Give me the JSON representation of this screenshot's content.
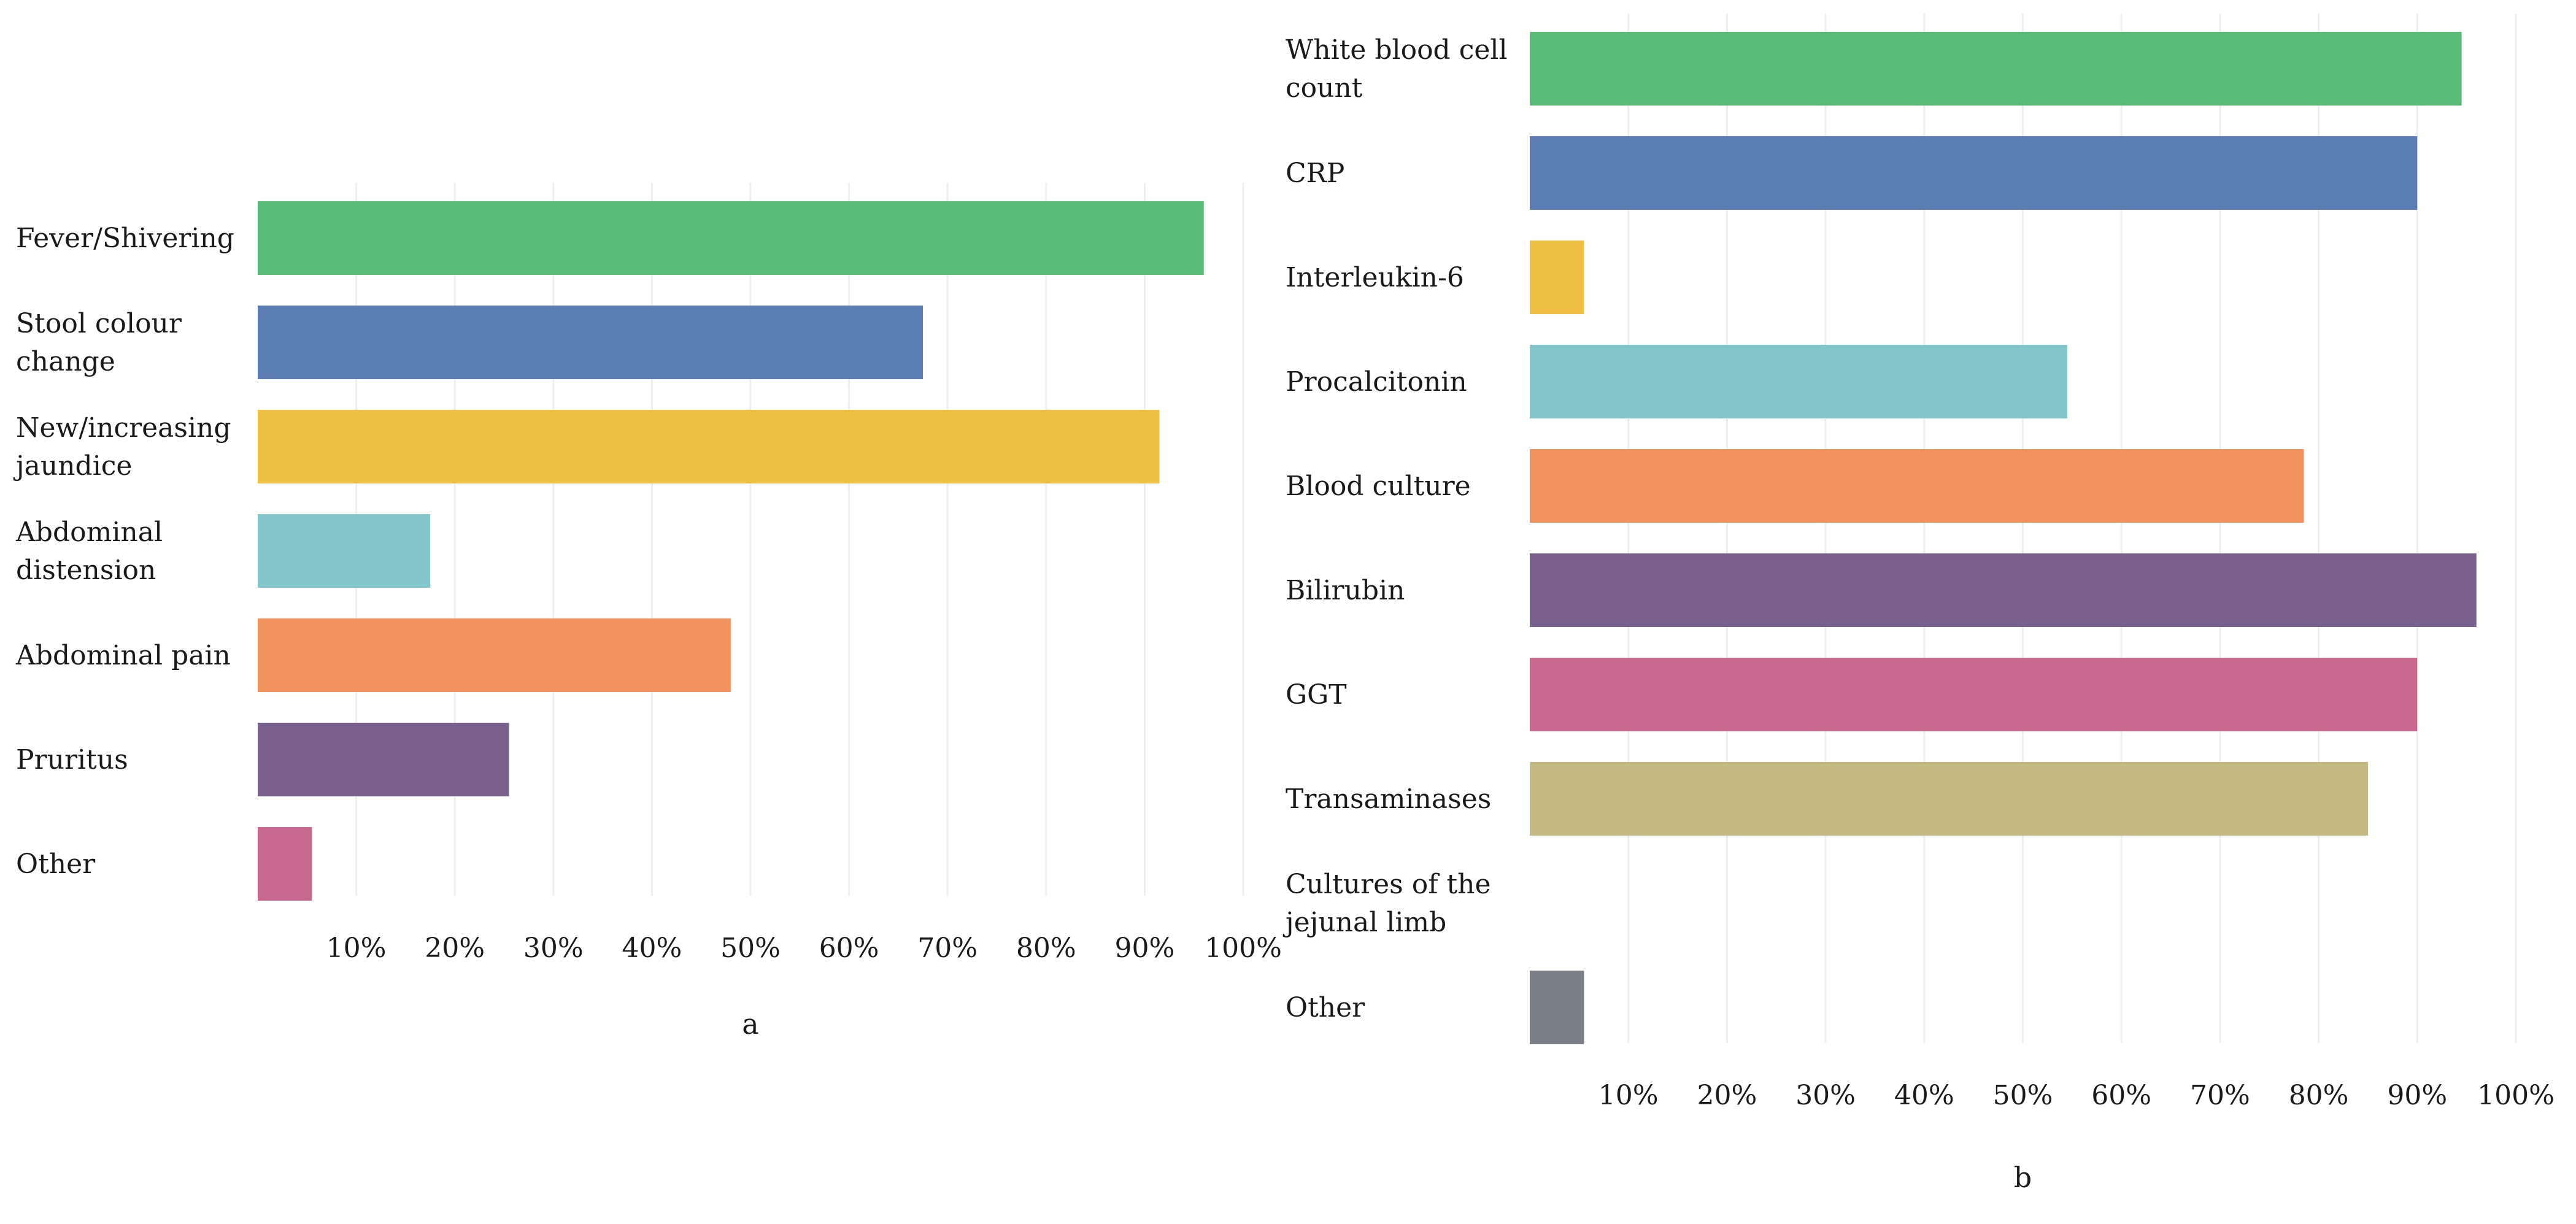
{
  "chart_data": [
    {
      "type": "bar",
      "orientation": "horizontal",
      "panel_label": "a",
      "categories": [
        "Fever/Shivering",
        "Stool colour change",
        "New/increasing jaundice",
        "Abdominal distension",
        "Abdominal pain",
        "Pruritus",
        "Other"
      ],
      "category_lines": [
        [
          "Fever/Shivering"
        ],
        [
          "Stool colour",
          "change"
        ],
        [
          "New/increasing",
          "jaundice"
        ],
        [
          "Abdominal",
          "distension"
        ],
        [
          "Abdominal pain"
        ],
        [
          "Pruritus"
        ],
        [
          "Other"
        ]
      ],
      "values": [
        96,
        67.5,
        91.5,
        17.5,
        48,
        25.5,
        5.5
      ],
      "colors": [
        "#58bc76",
        "#5b7db3",
        "#efc043",
        "#83c6cb",
        "#f0935e",
        "#7a608c",
        "#c8688f"
      ],
      "xlim": [
        0,
        100
      ],
      "xticks": [
        "10%",
        "20%",
        "30%",
        "40%",
        "50%",
        "60%",
        "70%",
        "80%",
        "90%",
        "100%"
      ],
      "grid": true,
      "title": "",
      "xlabel": "",
      "ylabel": ""
    },
    {
      "type": "bar",
      "orientation": "horizontal",
      "panel_label": "b",
      "categories": [
        "White blood cell count",
        "CRP",
        "Interleukin-6",
        "Procalcitonin",
        "Blood culture",
        "Bilirubin",
        "GGT",
        "Transaminases",
        "Cultures of the jejunal limb",
        "Other"
      ],
      "category_lines": [
        [
          "White blood cell",
          "count"
        ],
        [
          "CRP"
        ],
        [
          "Interleukin-6"
        ],
        [
          "Procalcitonin"
        ],
        [
          "Blood culture"
        ],
        [
          "Bilirubin"
        ],
        [
          "GGT"
        ],
        [
          "Transaminases"
        ],
        [
          "Cultures of the",
          "jejunal limb"
        ],
        [
          "Other"
        ]
      ],
      "values": [
        94.5,
        90,
        5.5,
        54.5,
        78.5,
        96,
        90,
        85,
        0,
        5.5
      ],
      "colors": [
        "#58bc76",
        "#5b7db3",
        "#efc043",
        "#83c6cb",
        "#f0935e",
        "#7a608c",
        "#c8688f",
        "#c4b983",
        "#cccccc",
        "#7b7f87"
      ],
      "xlim": [
        0,
        100
      ],
      "xticks": [
        "10%",
        "20%",
        "30%",
        "40%",
        "50%",
        "60%",
        "70%",
        "80%",
        "90%",
        "100%"
      ],
      "grid": true,
      "title": "",
      "xlabel": "",
      "ylabel": ""
    }
  ]
}
